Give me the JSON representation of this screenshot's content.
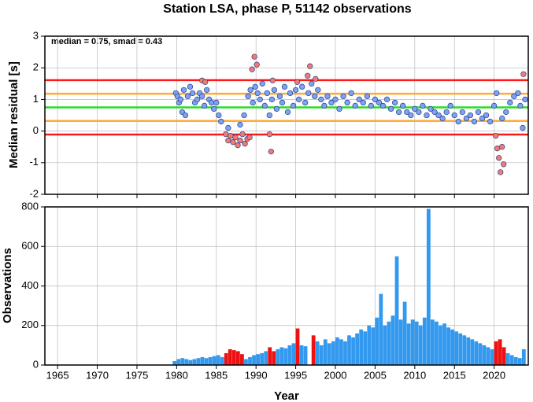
{
  "chart_data": [
    {
      "type": "scatter",
      "title": "Station LSA, phase P, 51142 observations",
      "y_label": "Median residual [s]",
      "annotation": "median = 0.75, smad = 0.43",
      "xlim": [
        1963.4,
        2024.3
      ],
      "xticks": [
        1965,
        1970,
        1975,
        1980,
        1985,
        1990,
        1995,
        2000,
        2005,
        2010,
        2015,
        2020
      ],
      "ylim": [
        -2,
        3
      ],
      "yticks": [
        -2,
        -1,
        0,
        1,
        2,
        3
      ],
      "grid": true,
      "reference_lines": [
        {
          "value": 1.61,
          "color": "#ff1a1a"
        },
        {
          "value": 1.18,
          "color": "#ffaa33"
        },
        {
          "value": 0.75,
          "color": "#22dd22"
        },
        {
          "value": 0.32,
          "color": "#ffaa33"
        },
        {
          "value": -0.11,
          "color": "#ff1a1a"
        }
      ],
      "series": [
        {
          "color": "#7ba3f2",
          "x": [
            1979.9,
            1980.1,
            1980.3,
            1980.5,
            1980.7,
            1980.9,
            1981.1,
            1981.4,
            1981.7,
            1982.0,
            1982.3,
            1982.6,
            1982.9,
            1983.2,
            1983.5,
            1983.8,
            1984.1,
            1984.4,
            1984.7,
            1985.0,
            1985.3,
            1985.6,
            1986.5,
            1988.0,
            1988.5,
            1989.0,
            1989.3,
            1989.6,
            1989.9,
            1990.2,
            1990.5,
            1990.8,
            1991.1,
            1991.4,
            1991.7,
            1992.0,
            1992.3,
            1992.6,
            1993.0,
            1993.3,
            1993.6,
            1994.0,
            1994.3,
            1994.7,
            1995.0,
            1995.4,
            1995.8,
            1996.2,
            1996.6,
            1997.0,
            1997.4,
            1997.8,
            1998.2,
            1998.6,
            1999.0,
            1999.5,
            2000.0,
            2000.5,
            2001.0,
            2001.5,
            2002.0,
            2002.5,
            2003.0,
            2003.5,
            2004.0,
            2004.5,
            2005.0,
            2005.5,
            2006.0,
            2006.5,
            2007.0,
            2007.5,
            2008.0,
            2008.5,
            2009.0,
            2009.5,
            2010.0,
            2010.5,
            2011.0,
            2011.5,
            2012.0,
            2012.5,
            2013.0,
            2013.5,
            2014.0,
            2014.5,
            2015.0,
            2015.5,
            2016.0,
            2016.5,
            2017.0,
            2017.5,
            2018.0,
            2018.5,
            2019.0,
            2019.5,
            2020.0,
            2020.3,
            2021.0,
            2021.5,
            2022.0,
            2022.5,
            2023.0,
            2023.3,
            2023.6,
            2023.9
          ],
          "values": [
            1.2,
            1.1,
            0.9,
            1.0,
            0.6,
            1.3,
            0.5,
            1.1,
            1.4,
            1.2,
            0.9,
            1.0,
            1.2,
            1.1,
            0.8,
            1.3,
            1.0,
            0.9,
            0.7,
            0.9,
            0.5,
            0.3,
            0.1,
            0.2,
            0.5,
            1.1,
            1.3,
            0.9,
            1.4,
            1.2,
            1.0,
            1.5,
            0.8,
            1.2,
            0.5,
            1.0,
            1.3,
            0.7,
            1.1,
            0.9,
            1.4,
            0.6,
            1.2,
            0.8,
            1.3,
            1.0,
            1.4,
            0.9,
            1.2,
            1.5,
            1.1,
            1.3,
            1.0,
            0.8,
            1.1,
            0.9,
            1.0,
            0.7,
            1.1,
            0.9,
            1.2,
            0.8,
            1.0,
            0.9,
            1.1,
            0.8,
            1.0,
            0.9,
            0.8,
            1.0,
            0.7,
            0.9,
            0.6,
            0.8,
            0.6,
            0.5,
            0.7,
            0.6,
            0.8,
            0.5,
            0.7,
            0.6,
            0.5,
            0.4,
            0.6,
            0.8,
            0.5,
            0.3,
            0.6,
            0.4,
            0.5,
            0.3,
            0.6,
            0.4,
            0.5,
            0.3,
            0.8,
            1.2,
            0.4,
            0.6,
            0.9,
            1.1,
            1.2,
            0.8,
            0.1,
            1.0
          ]
        },
        {
          "color": "#f27b70",
          "x": [
            1983.2,
            1983.6,
            1986.2,
            1986.5,
            1986.8,
            1987.1,
            1987.4,
            1987.7,
            1988.0,
            1988.3,
            1988.6,
            1988.9,
            1989.2,
            1989.5,
            1989.8,
            1990.1,
            1991.7,
            1991.9,
            1992.1,
            1995.2,
            1996.5,
            1996.8,
            1997.5,
            2020.2,
            2020.4,
            2020.6,
            2020.8,
            2021.0,
            2021.2,
            2023.7
          ],
          "values": [
            1.6,
            1.55,
            -0.1,
            -0.3,
            -0.15,
            -0.35,
            -0.2,
            -0.45,
            -0.3,
            -0.1,
            -0.4,
            -0.25,
            -0.2,
            1.95,
            2.35,
            2.1,
            -0.1,
            -0.65,
            1.6,
            1.55,
            1.75,
            2.05,
            1.65,
            -0.15,
            -0.55,
            -0.85,
            -1.3,
            -0.5,
            -1.05,
            1.8
          ]
        }
      ]
    },
    {
      "type": "bar",
      "x_label": "Year",
      "y_label": "Observations",
      "xlim": [
        1963.4,
        2024.3
      ],
      "xticks": [
        1965,
        1970,
        1975,
        1980,
        1985,
        1990,
        1995,
        2000,
        2005,
        2010,
        2015,
        2020
      ],
      "ylim": [
        0,
        800
      ],
      "yticks": [
        0,
        200,
        400,
        600,
        800
      ],
      "grid": true,
      "series": [
        {
          "color": "#3399ee",
          "x": [
            1979.5,
            1980,
            1980.5,
            1981,
            1981.5,
            1982,
            1982.5,
            1983,
            1983.5,
            1984,
            1984.5,
            1985,
            1985.5,
            1988.5,
            1989,
            1989.5,
            1990,
            1990.5,
            1991,
            1992.5,
            1993,
            1993.5,
            1994,
            1994.5,
            1995.5,
            1996,
            1997.5,
            1998,
            1998.5,
            1999,
            1999.5,
            2000,
            2000.5,
            2001,
            2001.5,
            2002,
            2002.5,
            2003,
            2003.5,
            2004,
            2004.5,
            2005,
            2005.5,
            2006,
            2006.5,
            2007,
            2007.5,
            2008,
            2008.5,
            2009,
            2009.5,
            2010,
            2010.5,
            2011,
            2011.5,
            2012,
            2012.5,
            2013,
            2013.5,
            2014,
            2014.5,
            2015,
            2015.5,
            2016,
            2016.5,
            2017,
            2017.5,
            2018,
            2018.5,
            2019,
            2019.5,
            2021.5,
            2022,
            2022.5,
            2023,
            2023.5
          ],
          "values": [
            20,
            30,
            35,
            30,
            25,
            30,
            35,
            40,
            35,
            40,
            45,
            50,
            40,
            30,
            40,
            50,
            55,
            60,
            70,
            80,
            90,
            85,
            100,
            110,
            100,
            95,
            120,
            100,
            130,
            110,
            120,
            140,
            130,
            120,
            150,
            140,
            160,
            180,
            170,
            200,
            190,
            240,
            360,
            200,
            220,
            250,
            550,
            230,
            320,
            210,
            230,
            220,
            200,
            240,
            790,
            230,
            220,
            200,
            210,
            190,
            180,
            170,
            160,
            150,
            140,
            130,
            120,
            110,
            100,
            90,
            80,
            60,
            50,
            40,
            35,
            80
          ]
        },
        {
          "color": "#ee1111",
          "x": [
            1986,
            1986.5,
            1987,
            1987.5,
            1988,
            1991.5,
            1992,
            1995,
            1997,
            2020,
            2020.5,
            2021
          ],
          "values": [
            60,
            80,
            75,
            70,
            55,
            90,
            70,
            185,
            150,
            120,
            130,
            90
          ]
        }
      ]
    }
  ]
}
